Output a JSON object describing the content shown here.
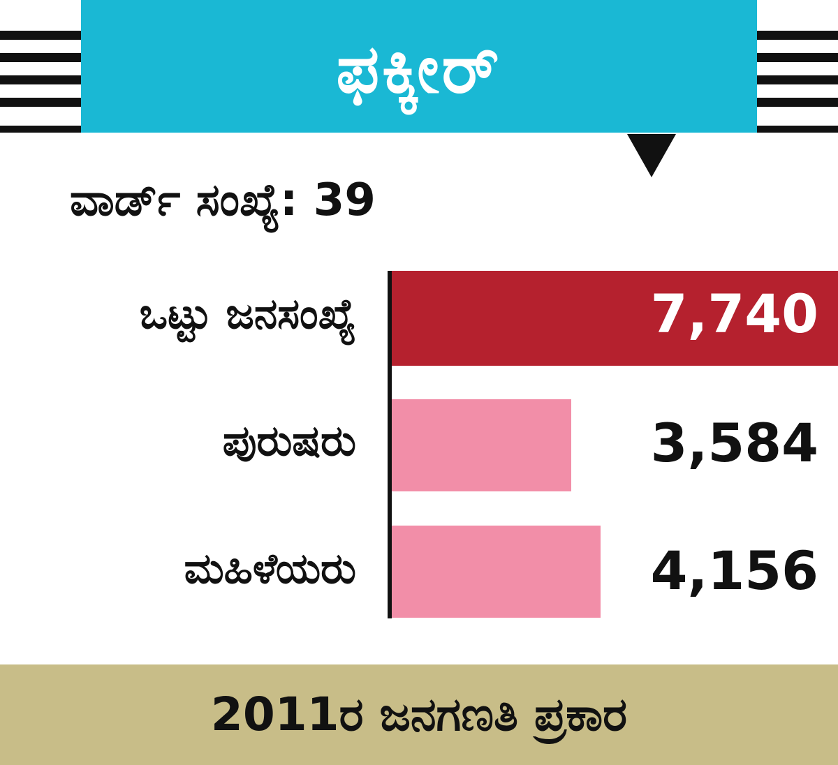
{
  "title": "ಫಕ್ಕೀರ್",
  "ward_label": "ವಾರ್ಡ್ ಸಂಖ್ಯೆ: 39",
  "footer": "2011ರ ಜನಗಣತಿ ಪ್ರಕಾರ",
  "colors": {
    "title_bg": "#1ab8d4",
    "total_bar": "#b5212e",
    "sub_bar": "#f28ea8",
    "footer_bg": "#c8bd88"
  },
  "chart_data": {
    "type": "bar",
    "orientation": "horizontal",
    "categories": [
      "ಒಟ್ಟು ಜನಸಂಖ್ಯೆ",
      "ಪುರುಷರು",
      "ಮಹಿಳೆಯರು"
    ],
    "values": [
      7740,
      3584,
      4156
    ],
    "value_labels": [
      "7,740",
      "3,584",
      "4,156"
    ],
    "title": "ಫಕ್ಕೀರ್",
    "xlim": [
      0,
      7740
    ]
  }
}
